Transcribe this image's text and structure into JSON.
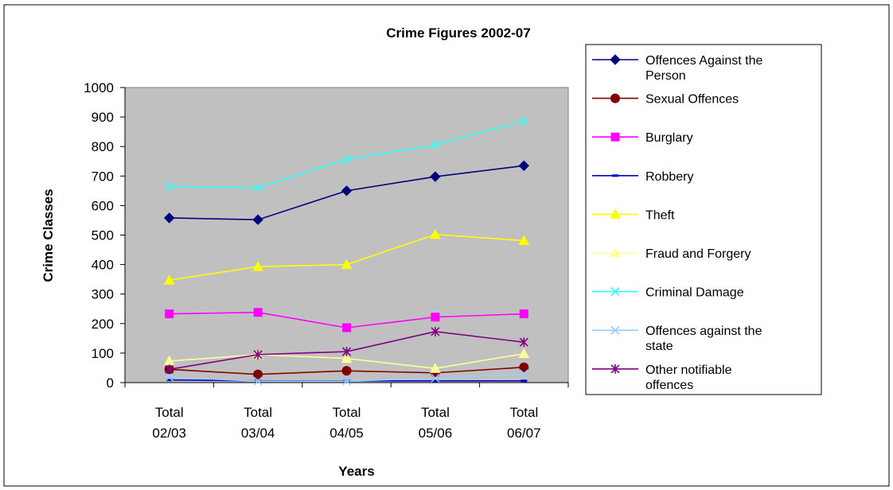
{
  "chart_data": {
    "type": "line",
    "title": "Crime Figures 2002-07",
    "xlabel": "Years",
    "ylabel": "Crime Classes",
    "ylim": [
      0,
      1000
    ],
    "y_ticks": [
      0,
      100,
      200,
      300,
      400,
      500,
      600,
      700,
      800,
      900,
      1000
    ],
    "grid": false,
    "legend_position": "right",
    "categories": [
      [
        "Total",
        "02/03"
      ],
      [
        "Total",
        "03/04"
      ],
      [
        "Total",
        "04/05"
      ],
      [
        "Total",
        "05/06"
      ],
      [
        "Total",
        "06/07"
      ]
    ],
    "series": [
      {
        "name": "Offences Against the Person",
        "legend_lines": [
          "Offences Against the",
          "Person"
        ],
        "color": "#000080",
        "marker": "diamond",
        "values": [
          558,
          552,
          650,
          698,
          735
        ]
      },
      {
        "name": "Sexual Offences",
        "legend_lines": [
          "Sexual Offences"
        ],
        "color": "#800000",
        "marker": "circle",
        "values": [
          45,
          28,
          40,
          33,
          52
        ]
      },
      {
        "name": "Burglary",
        "legend_lines": [
          "Burglary"
        ],
        "color": "#ff00ff",
        "marker": "square",
        "values": [
          233,
          238,
          186,
          222,
          233
        ]
      },
      {
        "name": "Robbery",
        "legend_lines": [
          "Robbery"
        ],
        "color": "#0000cc",
        "marker": "dash",
        "values": [
          9,
          6,
          6,
          6,
          6
        ]
      },
      {
        "name": "Theft",
        "legend_lines": [
          "Theft"
        ],
        "color": "#ffff00",
        "marker": "triangle",
        "values": [
          347,
          393,
          400,
          502,
          481
        ]
      },
      {
        "name": "Fraud and Forgery",
        "legend_lines": [
          "Fraud and Forgery"
        ],
        "color": "#ffff99",
        "marker": "triangle",
        "values": [
          73,
          95,
          82,
          48,
          98
        ]
      },
      {
        "name": "Criminal Damage",
        "legend_lines": [
          "Criminal Damage"
        ],
        "color": "#33ffff",
        "marker": "x",
        "values": [
          665,
          660,
          757,
          805,
          887
        ]
      },
      {
        "name": "Offences against the state",
        "legend_lines": [
          "Offences against the",
          "state"
        ],
        "color": "#99ccff",
        "marker": "x",
        "values": [
          18,
          5,
          5,
          15,
          30
        ]
      },
      {
        "name": "Other notifiable offences",
        "legend_lines": [
          "Other notifiable",
          "offences"
        ],
        "color": "#800080",
        "marker": "star",
        "values": [
          45,
          95,
          105,
          173,
          137
        ]
      }
    ]
  }
}
